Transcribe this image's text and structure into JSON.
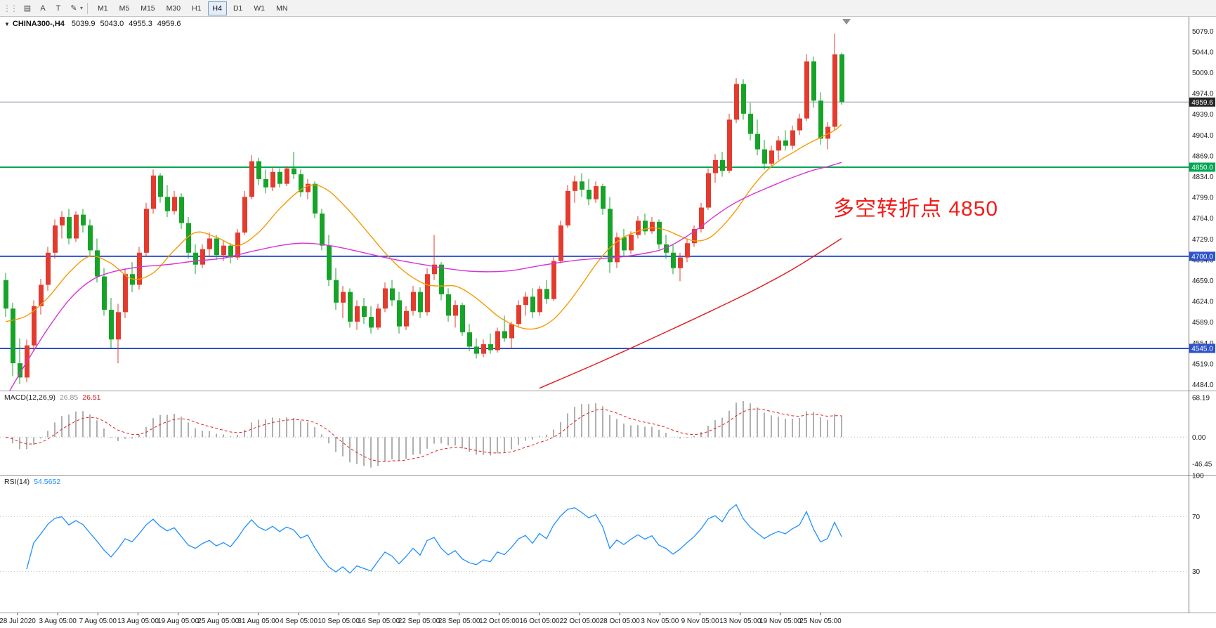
{
  "toolbar": {
    "icons": [
      {
        "name": "chart-mode-icon",
        "glyph": "▤"
      },
      {
        "name": "text-tool-icon",
        "glyph": "A"
      },
      {
        "name": "text-label-tool-icon",
        "glyph": "T"
      },
      {
        "name": "draw-tool-icon",
        "glyph": "✎"
      }
    ],
    "draw_tool_caret": "▾",
    "timeframes": [
      "M1",
      "M5",
      "M15",
      "M30",
      "H1",
      "H4",
      "D1",
      "W1",
      "MN"
    ],
    "active_timeframe": "H4"
  },
  "chart_header": {
    "collapse_icon": "▼",
    "symbol": "CHINA300-,H4",
    "open": "5039.9",
    "high": "5043.0",
    "low": "4955.3",
    "close": "4959.6"
  },
  "annotation": {
    "text": "多空转折点 4850",
    "color": "#f31c18"
  },
  "macd_panel": {
    "name": "MACD(12,26,9)",
    "value1": "26.85",
    "value2": "26.51",
    "axis_labels": [
      "68.19",
      "0.00",
      "-46.45"
    ],
    "axis_values": [
      68.19,
      0,
      -46.45
    ],
    "histogram_color": "#b0b0b0",
    "signal_color": "#e22222"
  },
  "rsi_panel": {
    "name": "RSI(14)",
    "value": "54.5652",
    "axis_labels": [
      "100",
      "70",
      "30"
    ],
    "axis_values": [
      100,
      70,
      30
    ],
    "levels": [
      70,
      30
    ],
    "line_color": "#1e90ff"
  },
  "chart_data": {
    "type": "candlestick",
    "title": "CHINA300-,H4",
    "bull_color": "#e33b2e",
    "bear_color": "#16a428",
    "y_axis": {
      "min": 4484,
      "max": 5079,
      "step": 35
    },
    "y_tick_labels": [
      "5079.0",
      "5044.0",
      "5009.0",
      "4974.0",
      "4939.0",
      "4904.0",
      "4869.0",
      "4834.0",
      "4799.0",
      "4764.0",
      "4729.0",
      "4694.0",
      "4659.0",
      "4624.0",
      "4589.0",
      "4554.0",
      "4519.0",
      "4484.0"
    ],
    "x_tick_labels": [
      "28 Jul 2020",
      "3 Aug 05:00",
      "7 Aug 05:00",
      "13 Aug 05:00",
      "19 Aug 05:00",
      "25 Aug 05:00",
      "31 Aug 05:00",
      "4 Sep 05:00",
      "10 Sep 05:00",
      "16 Sep 05:00",
      "22 Sep 05:00",
      "28 Sep 05:00",
      "12 Oct 05:00",
      "16 Oct 05:00",
      "22 Oct 05:00",
      "28 Oct 05:00",
      "3 Nov 05:00",
      "9 Nov 05:00",
      "13 Nov 05:00",
      "19 Nov 05:00",
      "25 Nov 05:00"
    ],
    "price_lines": [
      {
        "id": "bid-line",
        "price": 4959.6,
        "label": "4959.6",
        "line_color": "#8c96aa",
        "label_bg": "#262626",
        "width": 1
      },
      {
        "id": "level-4850",
        "price": 4850.0,
        "label": "4850.0",
        "line_color": "#00a651",
        "label_bg": "#00a651",
        "width": 2
      },
      {
        "id": "level-4700",
        "price": 4700.0,
        "label": "4700.0",
        "line_color": "#2d52cc",
        "label_bg": "#2d52cc",
        "width": 2
      },
      {
        "id": "level-4545",
        "price": 4545.0,
        "label": "4545.0",
        "line_color": "#2d52cc",
        "label_bg": "#2d52cc",
        "width": 2
      }
    ],
    "ma_lines": [
      {
        "name": "ma-fast",
        "color": "#f59a00",
        "points": [
          [
            0,
            4590
          ],
          [
            3,
            4600
          ],
          [
            6,
            4630
          ],
          [
            9,
            4672
          ],
          [
            12,
            4700
          ],
          [
            15,
            4688
          ],
          [
            18,
            4662
          ],
          [
            21,
            4672
          ],
          [
            24,
            4710
          ],
          [
            27,
            4740
          ],
          [
            30,
            4732
          ],
          [
            33,
            4718
          ],
          [
            36,
            4740
          ],
          [
            39,
            4780
          ],
          [
            42,
            4812
          ],
          [
            44,
            4820
          ],
          [
            46,
            4810
          ],
          [
            48,
            4788
          ],
          [
            50,
            4762
          ],
          [
            52,
            4734
          ],
          [
            54,
            4706
          ],
          [
            56,
            4682
          ],
          [
            58,
            4664
          ],
          [
            60,
            4652
          ],
          [
            62,
            4650
          ],
          [
            64,
            4650
          ],
          [
            66,
            4638
          ],
          [
            68,
            4620
          ],
          [
            70,
            4600
          ],
          [
            72,
            4586
          ],
          [
            74,
            4578
          ],
          [
            76,
            4580
          ],
          [
            78,
            4594
          ],
          [
            80,
            4620
          ],
          [
            82,
            4652
          ],
          [
            84,
            4686
          ],
          [
            86,
            4714
          ],
          [
            88,
            4732
          ],
          [
            90,
            4742
          ],
          [
            92,
            4748
          ],
          [
            94,
            4744
          ],
          [
            96,
            4734
          ],
          [
            98,
            4726
          ],
          [
            100,
            4730
          ],
          [
            102,
            4750
          ],
          [
            104,
            4778
          ],
          [
            106,
            4812
          ],
          [
            108,
            4840
          ],
          [
            110,
            4860
          ],
          [
            112,
            4874
          ],
          [
            114,
            4888
          ],
          [
            116,
            4900
          ],
          [
            118,
            4912
          ],
          [
            119,
            4922
          ]
        ]
      },
      {
        "name": "ma-medium",
        "color": "#d633d6",
        "points": [
          [
            0,
            4462
          ],
          [
            3,
            4522
          ],
          [
            6,
            4578
          ],
          [
            9,
            4626
          ],
          [
            12,
            4658
          ],
          [
            15,
            4673
          ],
          [
            19,
            4682
          ],
          [
            23,
            4686
          ],
          [
            27,
            4692
          ],
          [
            31,
            4697
          ],
          [
            35,
            4708
          ],
          [
            39,
            4718
          ],
          [
            42,
            4722
          ],
          [
            45,
            4720
          ],
          [
            48,
            4714
          ],
          [
            51,
            4706
          ],
          [
            54,
            4698
          ],
          [
            57,
            4691
          ],
          [
            60,
            4685
          ],
          [
            63,
            4679
          ],
          [
            66,
            4675
          ],
          [
            69,
            4674
          ],
          [
            72,
            4676
          ],
          [
            75,
            4682
          ],
          [
            78,
            4688
          ],
          [
            81,
            4693
          ],
          [
            84,
            4696
          ],
          [
            87,
            4698
          ],
          [
            90,
            4703
          ],
          [
            93,
            4710
          ],
          [
            95,
            4720
          ],
          [
            97,
            4734
          ],
          [
            99,
            4750
          ],
          [
            101,
            4768
          ],
          [
            103,
            4784
          ],
          [
            105,
            4797
          ],
          [
            107,
            4808
          ],
          [
            109,
            4818
          ],
          [
            111,
            4828
          ],
          [
            113,
            4837
          ],
          [
            115,
            4845
          ],
          [
            117,
            4851
          ],
          [
            119,
            4858
          ]
        ]
      },
      {
        "name": "ma-slow",
        "color": "#e11b1b",
        "points": [
          [
            76,
            4478
          ],
          [
            85,
            4524
          ],
          [
            95,
            4578
          ],
          [
            105,
            4634
          ],
          [
            112,
            4678
          ],
          [
            119,
            4730
          ]
        ]
      }
    ],
    "ohlc": [
      [
        4660,
        4672,
        4598,
        4612
      ],
      [
        4612,
        4622,
        4498,
        4520
      ],
      [
        4520,
        4562,
        4485,
        4496
      ],
      [
        4496,
        4560,
        4488,
        4550
      ],
      [
        4550,
        4626,
        4542,
        4616
      ],
      [
        4616,
        4662,
        4602,
        4652
      ],
      [
        4652,
        4716,
        4642,
        4706
      ],
      [
        4706,
        4762,
        4696,
        4752
      ],
      [
        4752,
        4776,
        4730,
        4766
      ],
      [
        4766,
        4780,
        4720,
        4730
      ],
      [
        4730,
        4776,
        4724,
        4770
      ],
      [
        4770,
        4780,
        4740,
        4752
      ],
      [
        4752,
        4762,
        4700,
        4710
      ],
      [
        4710,
        4730,
        4656,
        4666
      ],
      [
        4666,
        4680,
        4600,
        4610
      ],
      [
        4610,
        4630,
        4546,
        4560
      ],
      [
        4560,
        4620,
        4520,
        4606
      ],
      [
        4606,
        4680,
        4596,
        4670
      ],
      [
        4670,
        4690,
        4640,
        4652
      ],
      [
        4652,
        4716,
        4644,
        4706
      ],
      [
        4706,
        4790,
        4700,
        4780
      ],
      [
        4780,
        4846,
        4772,
        4836
      ],
      [
        4836,
        4840,
        4790,
        4800
      ],
      [
        4800,
        4820,
        4766,
        4776
      ],
      [
        4776,
        4810,
        4770,
        4800
      ],
      [
        4800,
        4806,
        4746,
        4756
      ],
      [
        4756,
        4766,
        4696,
        4706
      ],
      [
        4706,
        4720,
        4670,
        4686
      ],
      [
        4686,
        4720,
        4680,
        4712
      ],
      [
        4712,
        4740,
        4700,
        4730
      ],
      [
        4730,
        4736,
        4694,
        4702
      ],
      [
        4702,
        4726,
        4692,
        4718
      ],
      [
        4718,
        4722,
        4688,
        4698
      ],
      [
        4698,
        4746,
        4694,
        4740
      ],
      [
        4740,
        4810,
        4736,
        4800
      ],
      [
        4800,
        4870,
        4796,
        4860
      ],
      [
        4860,
        4866,
        4820,
        4830
      ],
      [
        4830,
        4846,
        4806,
        4816
      ],
      [
        4816,
        4850,
        4810,
        4842
      ],
      [
        4842,
        4848,
        4816,
        4822
      ],
      [
        4822,
        4852,
        4818,
        4848
      ],
      [
        4848,
        4876,
        4830,
        4838
      ],
      [
        4838,
        4846,
        4800,
        4808
      ],
      [
        4808,
        4830,
        4796,
        4822
      ],
      [
        4822,
        4826,
        4764,
        4772
      ],
      [
        4772,
        4780,
        4710,
        4718
      ],
      [
        4718,
        4736,
        4650,
        4660
      ],
      [
        4660,
        4680,
        4610,
        4622
      ],
      [
        4622,
        4650,
        4596,
        4640
      ],
      [
        4640,
        4646,
        4580,
        4590
      ],
      [
        4590,
        4626,
        4576,
        4616
      ],
      [
        4616,
        4630,
        4586,
        4598
      ],
      [
        4598,
        4616,
        4570,
        4580
      ],
      [
        4580,
        4620,
        4576,
        4612
      ],
      [
        4612,
        4656,
        4606,
        4646
      ],
      [
        4646,
        4660,
        4616,
        4626
      ],
      [
        4626,
        4640,
        4570,
        4582
      ],
      [
        4582,
        4616,
        4576,
        4608
      ],
      [
        4608,
        4650,
        4600,
        4640
      ],
      [
        4640,
        4648,
        4596,
        4606
      ],
      [
        4606,
        4680,
        4600,
        4670
      ],
      [
        4670,
        4736,
        4660,
        4686
      ],
      [
        4686,
        4690,
        4626,
        4636
      ],
      [
        4636,
        4646,
        4590,
        4600
      ],
      [
        4600,
        4626,
        4580,
        4618
      ],
      [
        4618,
        4622,
        4566,
        4572
      ],
      [
        4572,
        4586,
        4540,
        4548
      ],
      [
        4548,
        4562,
        4528,
        4536
      ],
      [
        4536,
        4560,
        4530,
        4552
      ],
      [
        4552,
        4570,
        4536,
        4542
      ],
      [
        4542,
        4580,
        4538,
        4574
      ],
      [
        4574,
        4600,
        4556,
        4562
      ],
      [
        4562,
        4590,
        4545,
        4586
      ],
      [
        4586,
        4626,
        4580,
        4618
      ],
      [
        4618,
        4640,
        4600,
        4632
      ],
      [
        4632,
        4646,
        4596,
        4606
      ],
      [
        4606,
        4650,
        4600,
        4645
      ],
      [
        4645,
        4660,
        4620,
        4628
      ],
      [
        4628,
        4700,
        4625,
        4692
      ],
      [
        4692,
        4760,
        4688,
        4752
      ],
      [
        4752,
        4820,
        4748,
        4810
      ],
      [
        4810,
        4836,
        4790,
        4826
      ],
      [
        4826,
        4840,
        4800,
        4812
      ],
      [
        4812,
        4830,
        4786,
        4796
      ],
      [
        4796,
        4826,
        4790,
        4818
      ],
      [
        4818,
        4822,
        4770,
        4780
      ],
      [
        4780,
        4800,
        4672,
        4690
      ],
      [
        4690,
        4740,
        4680,
        4732
      ],
      [
        4732,
        4746,
        4700,
        4710
      ],
      [
        4710,
        4742,
        4704,
        4736
      ],
      [
        4736,
        4768,
        4730,
        4760
      ],
      [
        4760,
        4772,
        4736,
        4742
      ],
      [
        4742,
        4766,
        4738,
        4758
      ],
      [
        4758,
        4762,
        4712,
        4720
      ],
      [
        4720,
        4736,
        4696,
        4706
      ],
      [
        4706,
        4720,
        4670,
        4680
      ],
      [
        4680,
        4706,
        4658,
        4698
      ],
      [
        4698,
        4730,
        4690,
        4722
      ],
      [
        4722,
        4752,
        4716,
        4746
      ],
      [
        4746,
        4790,
        4740,
        4782
      ],
      [
        4782,
        4848,
        4778,
        4840
      ],
      [
        4840,
        4872,
        4824,
        4862
      ],
      [
        4862,
        4876,
        4834,
        4844
      ],
      [
        4844,
        4940,
        4840,
        4930
      ],
      [
        4930,
        5000,
        4924,
        4990
      ],
      [
        4990,
        4998,
        4930,
        4940
      ],
      [
        4940,
        4958,
        4895,
        4906
      ],
      [
        4906,
        4930,
        4870,
        4880
      ],
      [
        4880,
        4896,
        4846,
        4856
      ],
      [
        4856,
        4886,
        4850,
        4878
      ],
      [
        4878,
        4902,
        4862,
        4895
      ],
      [
        4895,
        4912,
        4878,
        4886
      ],
      [
        4886,
        4920,
        4880,
        4912
      ],
      [
        4912,
        4940,
        4904,
        4932
      ],
      [
        4932,
        5040,
        4928,
        5028
      ],
      [
        5028,
        5036,
        4950,
        4962
      ],
      [
        4962,
        4976,
        4888,
        4898
      ],
      [
        4898,
        4926,
        4880,
        4918
      ],
      [
        4918,
        5075,
        4912,
        5039.9
      ],
      [
        5039.9,
        5043.0,
        4955.3,
        4959.6
      ]
    ]
  }
}
